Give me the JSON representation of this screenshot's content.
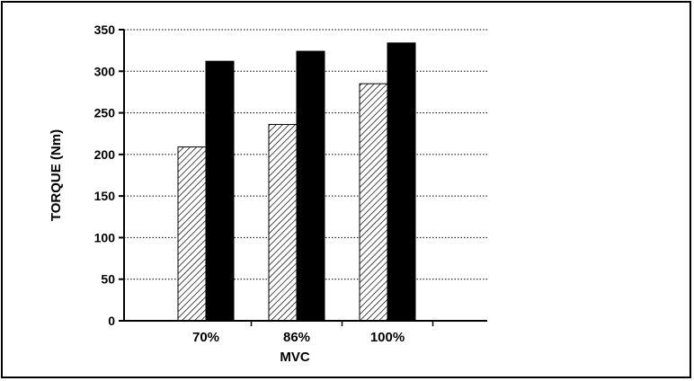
{
  "chart_data": {
    "type": "bar",
    "title": "",
    "xlabel": "MVC",
    "ylabel": "TORQUE  (Nm)",
    "categories": [
      "70%",
      "86%",
      "100%"
    ],
    "series": [
      {
        "values": [
          209,
          236,
          285
        ],
        "pattern": "hatched"
      },
      {
        "values": [
          312,
          324,
          334
        ],
        "pattern": "solid-black"
      }
    ],
    "ylim": [
      0,
      350
    ],
    "yticks": [
      0,
      50,
      100,
      150,
      200,
      250,
      300,
      350
    ],
    "grid": true,
    "legend": false
  },
  "colors": {
    "bar_solid": "#000000",
    "bar_hatch": "#000000",
    "gridline": "#000000",
    "background": "#ffffff"
  }
}
